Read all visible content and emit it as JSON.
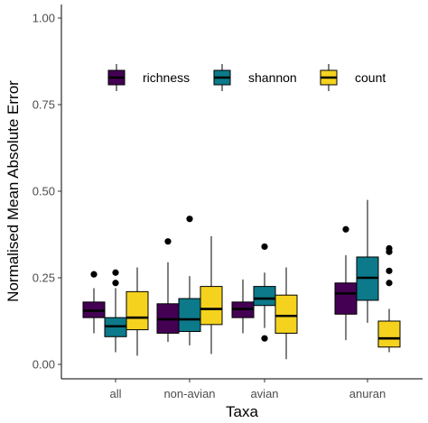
{
  "chart_data": {
    "type": "boxplot",
    "xlabel": "Taxa",
    "ylabel": "Normalised Mean Absolute Error",
    "ylim": [
      0,
      1.0
    ],
    "yticks": [
      "0.00",
      "0.25",
      "0.50",
      "0.75",
      "1.00"
    ],
    "ytick_values": [
      0,
      0.25,
      0.5,
      0.75,
      1.0
    ],
    "categories": [
      "all",
      "non-avian",
      "avian",
      "anuran"
    ],
    "legend_position": "top-center",
    "grid": false,
    "series": [
      {
        "name": "richness",
        "color": "#440154",
        "boxes": [
          {
            "whisker_low": 0.09,
            "q1": 0.135,
            "median": 0.155,
            "q3": 0.18,
            "whisker_high": 0.22,
            "outliers": [
              0.26
            ]
          },
          {
            "whisker_low": 0.065,
            "q1": 0.09,
            "median": 0.13,
            "q3": 0.175,
            "whisker_high": 0.295,
            "outliers": [
              0.355
            ]
          },
          {
            "whisker_low": 0.09,
            "q1": 0.135,
            "median": 0.16,
            "q3": 0.18,
            "whisker_high": 0.245,
            "outliers": []
          },
          {
            "whisker_low": 0.07,
            "q1": 0.145,
            "median": 0.205,
            "q3": 0.235,
            "whisker_high": 0.315,
            "outliers": [
              0.39
            ]
          }
        ]
      },
      {
        "name": "shannon",
        "color": "#0c7a8a",
        "boxes": [
          {
            "whisker_low": 0.035,
            "q1": 0.08,
            "median": 0.11,
            "q3": 0.135,
            "whisker_high": 0.22,
            "outliers": [
              0.265,
              0.235
            ]
          },
          {
            "whisker_low": 0.055,
            "q1": 0.095,
            "median": 0.13,
            "q3": 0.19,
            "whisker_high": 0.255,
            "outliers": [
              0.42
            ]
          },
          {
            "whisker_low": 0.105,
            "q1": 0.17,
            "median": 0.19,
            "q3": 0.225,
            "whisker_high": 0.265,
            "outliers": [
              0.34,
              0.075
            ]
          },
          {
            "whisker_low": 0.12,
            "q1": 0.185,
            "median": 0.25,
            "q3": 0.31,
            "whisker_high": 0.475,
            "outliers": []
          }
        ]
      },
      {
        "name": "count",
        "color": "#f5d21e",
        "boxes": [
          {
            "whisker_low": 0.025,
            "q1": 0.1,
            "median": 0.135,
            "q3": 0.21,
            "whisker_high": 0.28,
            "outliers": []
          },
          {
            "whisker_low": 0.03,
            "q1": 0.115,
            "median": 0.16,
            "q3": 0.225,
            "whisker_high": 0.37,
            "outliers": []
          },
          {
            "whisker_low": 0.015,
            "q1": 0.09,
            "median": 0.14,
            "q3": 0.2,
            "whisker_high": 0.28,
            "outliers": []
          },
          {
            "whisker_low": 0.035,
            "q1": 0.05,
            "median": 0.075,
            "q3": 0.125,
            "whisker_high": 0.16,
            "outliers": [
              0.335,
              0.325,
              0.27,
              0.235
            ]
          }
        ]
      }
    ]
  }
}
